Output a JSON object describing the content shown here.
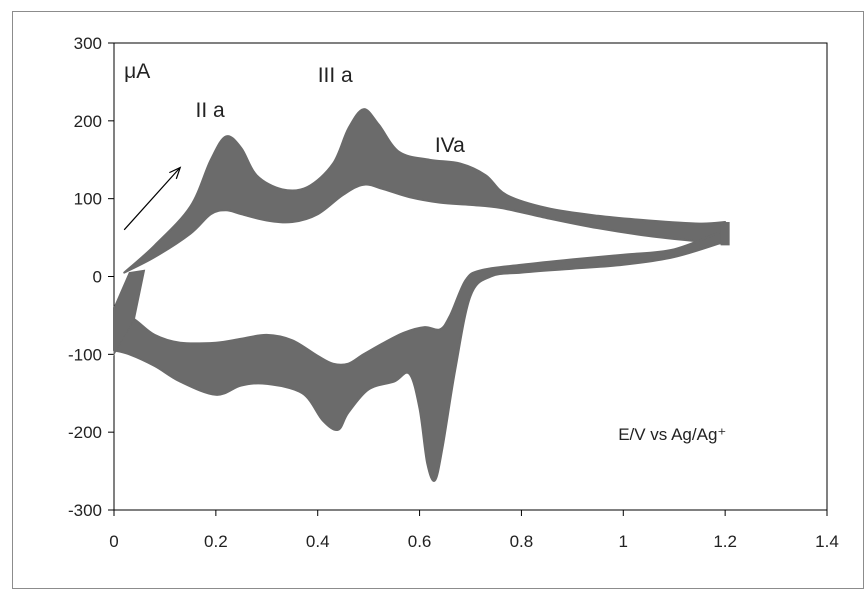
{
  "chart_data": {
    "type": "line",
    "title": "",
    "xlabel": "E/V vs Ag/Ag⁺",
    "ylabel": "μA",
    "xlim": [
      0,
      1.4
    ],
    "ylim": [
      -300,
      300
    ],
    "xticks": [
      "0",
      "0.2",
      "0.4",
      "0.6",
      "0.8",
      "1",
      "1.2",
      "1.4"
    ],
    "yticks": [
      "300",
      "200",
      "100",
      "0",
      "-100",
      "-200",
      "-300"
    ],
    "grid": false,
    "series_color": "#6b6b6b",
    "series": [
      {
        "name": "",
        "anodic_outer": [
          [
            0.02,
            5
          ],
          [
            0.08,
            40
          ],
          [
            0.15,
            90
          ],
          [
            0.19,
            150
          ],
          [
            0.22,
            180
          ],
          [
            0.25,
            165
          ],
          [
            0.28,
            130
          ],
          [
            0.33,
            112
          ],
          [
            0.38,
            115
          ],
          [
            0.43,
            145
          ],
          [
            0.46,
            190
          ],
          [
            0.49,
            215
          ],
          [
            0.52,
            195
          ],
          [
            0.56,
            160
          ],
          [
            0.62,
            150
          ],
          [
            0.68,
            145
          ],
          [
            0.73,
            130
          ],
          [
            0.77,
            105
          ],
          [
            0.85,
            88
          ],
          [
            0.95,
            78
          ],
          [
            1.05,
            72
          ],
          [
            1.15,
            68
          ],
          [
            1.2,
            70
          ]
        ],
        "anodic_inner": [
          [
            0.02,
            5
          ],
          [
            0.08,
            25
          ],
          [
            0.15,
            55
          ],
          [
            0.19,
            80
          ],
          [
            0.22,
            85
          ],
          [
            0.25,
            80
          ],
          [
            0.3,
            72
          ],
          [
            0.35,
            70
          ],
          [
            0.4,
            80
          ],
          [
            0.45,
            105
          ],
          [
            0.49,
            118
          ],
          [
            0.53,
            112
          ],
          [
            0.58,
            102
          ],
          [
            0.64,
            95
          ],
          [
            0.7,
            92
          ],
          [
            0.76,
            88
          ],
          [
            0.85,
            75
          ],
          [
            0.95,
            62
          ],
          [
            1.05,
            52
          ],
          [
            1.15,
            45
          ],
          [
            1.2,
            42
          ]
        ],
        "cathodic_outer": [
          [
            1.2,
            45
          ],
          [
            1.1,
            25
          ],
          [
            1.0,
            15
          ],
          [
            0.9,
            10
          ],
          [
            0.8,
            5
          ],
          [
            0.74,
            0
          ],
          [
            0.7,
            -25
          ],
          [
            0.67,
            -120
          ],
          [
            0.645,
            -220
          ],
          [
            0.63,
            -262
          ],
          [
            0.615,
            -240
          ],
          [
            0.6,
            -170
          ],
          [
            0.58,
            -125
          ],
          [
            0.55,
            -135
          ],
          [
            0.5,
            -145
          ],
          [
            0.46,
            -175
          ],
          [
            0.44,
            -197
          ],
          [
            0.41,
            -185
          ],
          [
            0.37,
            -150
          ],
          [
            0.3,
            -138
          ],
          [
            0.25,
            -140
          ],
          [
            0.2,
            -152
          ],
          [
            0.13,
            -135
          ],
          [
            0.08,
            -115
          ],
          [
            0.03,
            -100
          ],
          [
            0.0,
            -95
          ]
        ],
        "cathodic_inner": [
          [
            1.2,
            60
          ],
          [
            1.1,
            35
          ],
          [
            1.0,
            28
          ],
          [
            0.9,
            22
          ],
          [
            0.8,
            15
          ],
          [
            0.72,
            8
          ],
          [
            0.69,
            -5
          ],
          [
            0.66,
            -50
          ],
          [
            0.64,
            -68
          ],
          [
            0.61,
            -65
          ],
          [
            0.57,
            -72
          ],
          [
            0.53,
            -85
          ],
          [
            0.49,
            -100
          ],
          [
            0.46,
            -112
          ],
          [
            0.43,
            -112
          ],
          [
            0.4,
            -102
          ],
          [
            0.35,
            -82
          ],
          [
            0.3,
            -75
          ],
          [
            0.25,
            -80
          ],
          [
            0.2,
            -85
          ],
          [
            0.13,
            -85
          ],
          [
            0.08,
            -75
          ],
          [
            0.04,
            -55
          ],
          [
            0.0,
            -40
          ]
        ]
      }
    ],
    "annotations": [
      {
        "text": "μA",
        "x": 0.02,
        "y": 255
      },
      {
        "text": "II a",
        "x": 0.16,
        "y": 205
      },
      {
        "text": "III a",
        "x": 0.4,
        "y": 250
      },
      {
        "text": "IVa",
        "x": 0.63,
        "y": 160
      },
      {
        "text": "E/V vs Ag/Ag⁺",
        "x": 0.99,
        "y": -210
      }
    ],
    "arrow": {
      "from": [
        0.02,
        60
      ],
      "to": [
        0.13,
        140
      ]
    }
  }
}
